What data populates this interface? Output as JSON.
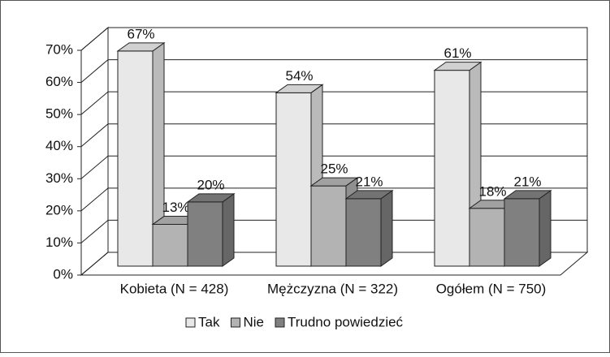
{
  "chart_data": {
    "type": "bar3d",
    "categories": [
      "Kobieta (N = 428)",
      "Mężczyzna (N = 322)",
      "Ogółem (N = 750)"
    ],
    "series": [
      {
        "name": "Tak",
        "color": "#e8e8e8",
        "values": [
          67,
          54,
          61
        ],
        "value_labels": [
          "67%",
          "54%",
          "61%"
        ]
      },
      {
        "name": "Nie",
        "color": "#b3b3b3",
        "values": [
          13,
          25,
          18
        ],
        "value_labels": [
          "13%",
          "25%",
          "18%"
        ]
      },
      {
        "name": "Trudno powiedzieć",
        "color": "#808080",
        "values": [
          20,
          21,
          21
        ],
        "value_labels": [
          "20%",
          "21%",
          "21%"
        ]
      }
    ],
    "ylim": [
      0,
      70
    ],
    "yticks": [
      {
        "value": 0,
        "label": "0%"
      },
      {
        "value": 10,
        "label": "10%"
      },
      {
        "value": 20,
        "label": "20%"
      },
      {
        "value": 30,
        "label": "30%"
      },
      {
        "value": 40,
        "label": "40%"
      },
      {
        "value": 50,
        "label": "50%"
      },
      {
        "value": 60,
        "label": "60%"
      },
      {
        "value": 70,
        "label": "70%"
      }
    ],
    "grid": true,
    "legend": "bottom"
  }
}
